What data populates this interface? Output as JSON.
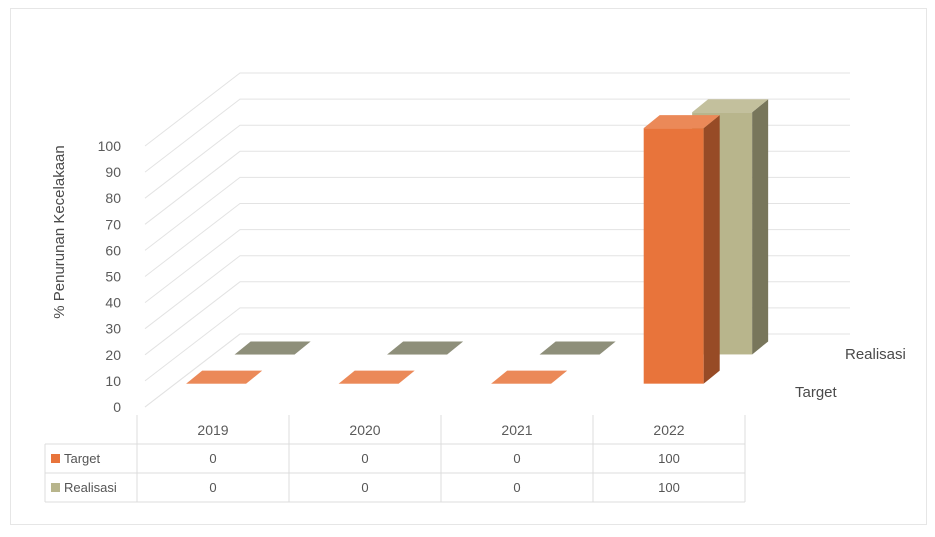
{
  "chart_data": {
    "type": "bar",
    "categories": [
      "2019",
      "2020",
      "2021",
      "2022"
    ],
    "series": [
      {
        "name": "Target",
        "values": [
          0,
          0,
          0,
          100
        ],
        "color": "#e8743b"
      },
      {
        "name": "Realisasi",
        "values": [
          0,
          0,
          0,
          100
        ],
        "color": "#b8b58c"
      }
    ],
    "ylabel": "% Penurunan Kecelakaan",
    "ylim": [
      0,
      100
    ],
    "yticks": [
      0,
      10,
      20,
      30,
      40,
      50,
      60,
      70,
      80,
      90,
      100
    ],
    "grid": true,
    "style": "3d-column",
    "data_table": true,
    "table_rows": [
      {
        "series": "Target",
        "cells": [
          "0",
          "0",
          "0",
          "100"
        ]
      },
      {
        "series": "Realisasi",
        "cells": [
          "0",
          "0",
          "0",
          "100"
        ]
      }
    ]
  }
}
